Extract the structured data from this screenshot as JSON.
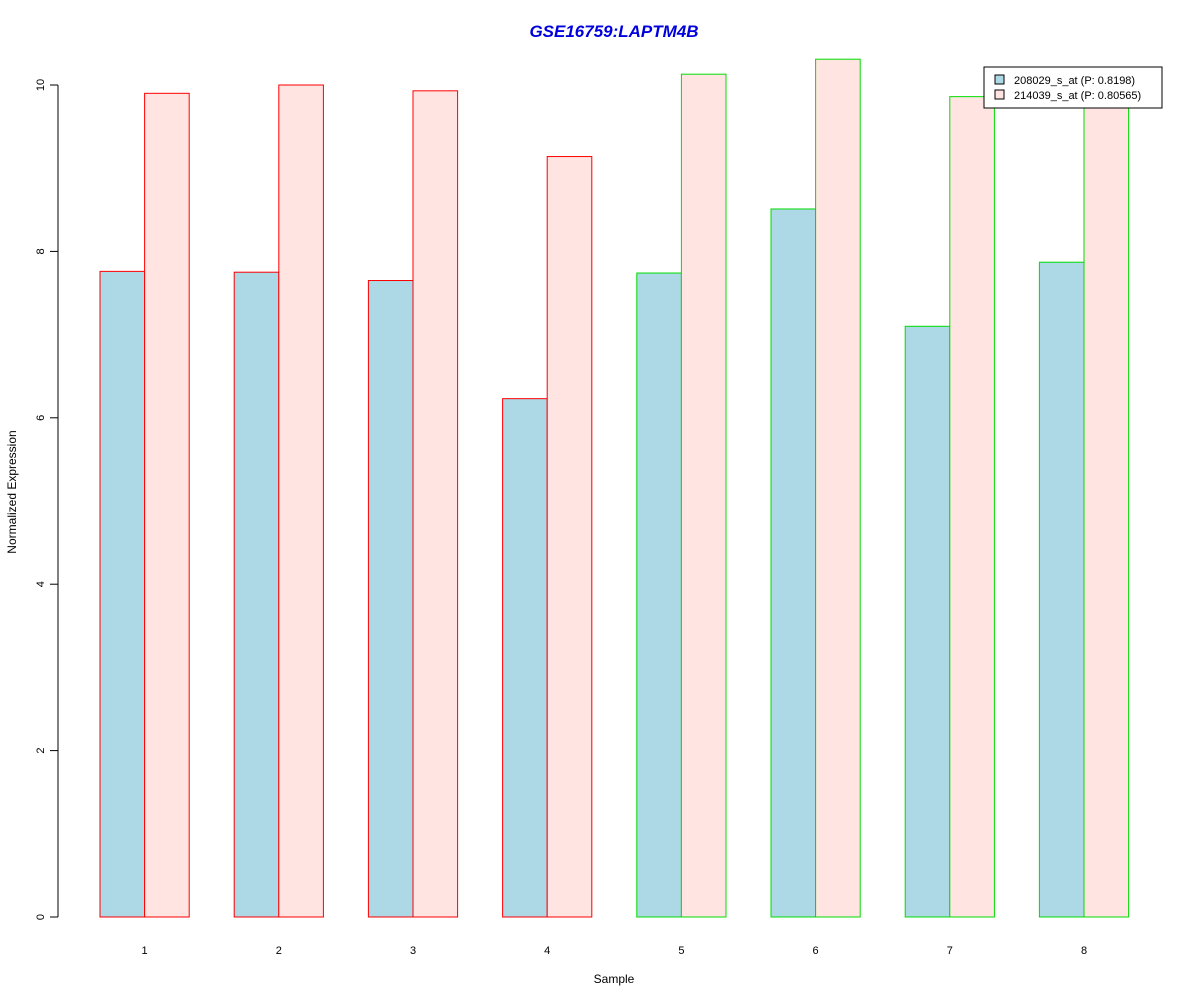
{
  "chart_data": {
    "type": "bar",
    "title": "GSE16759:LAPTM4B",
    "xlabel": "Sample",
    "ylabel": "Normalized Expression",
    "categories": [
      "1",
      "2",
      "3",
      "4",
      "5",
      "6",
      "7",
      "8"
    ],
    "series": [
      {
        "name": "208029_s_at (P: 0.8198)",
        "values": [
          7.76,
          7.75,
          7.65,
          6.23,
          7.74,
          8.51,
          7.1,
          7.87
        ]
      },
      {
        "name": "214039_s_at (P: 0.80565)",
        "values": [
          9.9,
          10.0,
          9.93,
          9.14,
          10.13,
          10.31,
          9.86,
          9.79
        ]
      }
    ],
    "group_outline_colors": [
      "#ff0000",
      "#ff0000",
      "#ff0000",
      "#ff0000",
      "#00dd00",
      "#00dd00",
      "#00dd00",
      "#00dd00"
    ],
    "series_fill_colors": [
      "#add8e6",
      "#ffe4e1"
    ],
    "yticks": [
      "0",
      "2",
      "4",
      "6",
      "8",
      "10"
    ],
    "ylim": [
      0,
      10.3
    ],
    "grid": false,
    "legend_position": "top-right"
  },
  "colors": {
    "title": "#0000dd",
    "axis": "#000000",
    "legend_border": "#000000"
  }
}
